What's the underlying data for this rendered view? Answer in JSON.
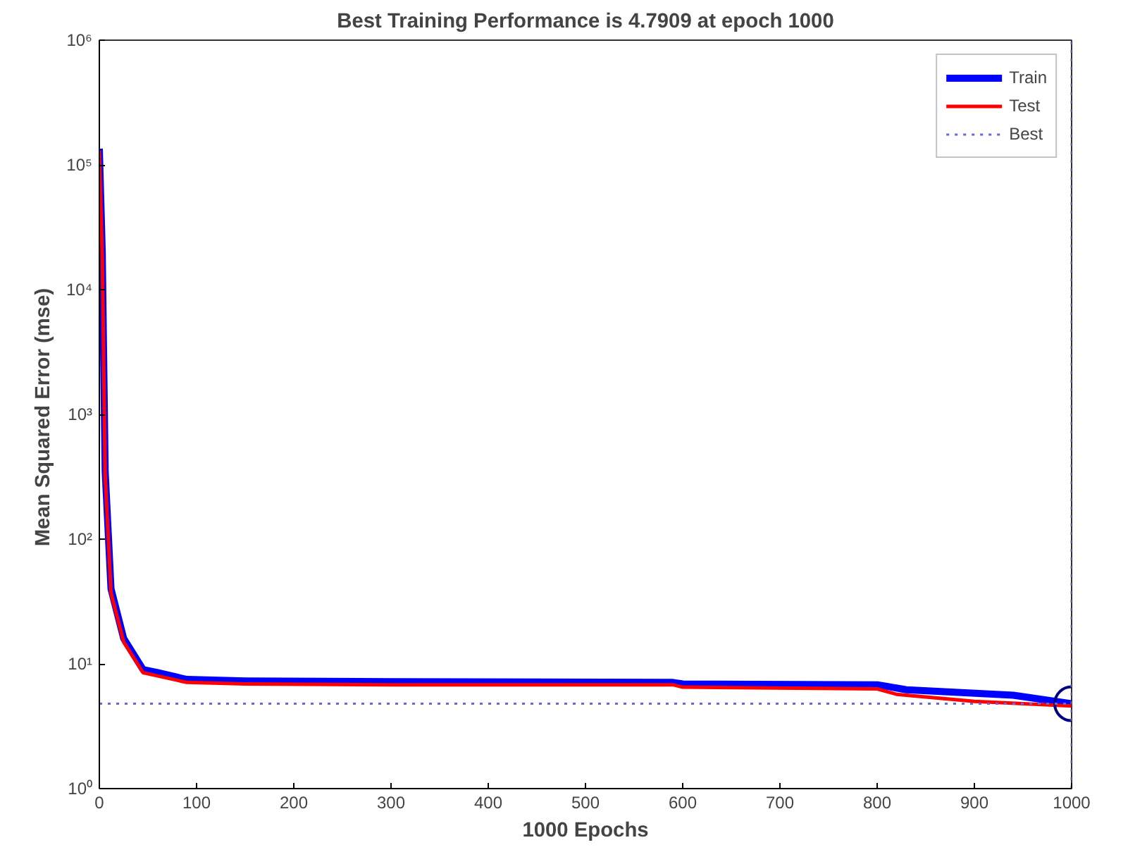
{
  "chart_data": {
    "type": "line",
    "title": "Best Training Performance is 4.7909 at epoch 1000",
    "xlabel": "1000 Epochs",
    "ylabel": "Mean Squared Error  (mse)",
    "log": "y",
    "xlim": [
      0,
      1000
    ],
    "ylim": [
      1,
      1000000
    ],
    "xticks": [
      0,
      100,
      200,
      300,
      400,
      500,
      600,
      700,
      800,
      900,
      1000
    ],
    "yticks": [
      {
        "value": 1,
        "label": "10⁰"
      },
      {
        "value": 10,
        "label": "10¹"
      },
      {
        "value": 100,
        "label": "10²"
      },
      {
        "value": 1000,
        "label": "10³"
      },
      {
        "value": 10000,
        "label": "10⁴"
      },
      {
        "value": 100000,
        "label": "10⁵"
      },
      {
        "value": 1000000,
        "label": "10⁶"
      }
    ],
    "grid": false,
    "legend": "top right",
    "line_style": "solid",
    "series": [
      {
        "name": "Train",
        "color": "#0000ff",
        "x": [
          0,
          3,
          6,
          12,
          25,
          45,
          60,
          90,
          150,
          300,
          590,
          600,
          800,
          810,
          830,
          940,
          1000
        ],
        "values": [
          135000,
          20000,
          350,
          40,
          16,
          9,
          8.5,
          7.5,
          7.3,
          7.2,
          7.1,
          6.9,
          6.8,
          6.6,
          6.2,
          5.6,
          4.7909
        ]
      },
      {
        "name": "Test",
        "color": "#ff0000",
        "x": [
          0,
          3,
          6,
          12,
          25,
          45,
          60,
          90,
          150,
          300,
          590,
          600,
          800,
          820,
          900,
          1000
        ],
        "values": [
          130000,
          19000,
          330,
          37,
          15,
          8.5,
          8,
          7.1,
          6.9,
          6.8,
          6.8,
          6.5,
          6.3,
          5.7,
          5.0,
          4.6
        ]
      },
      {
        "type": "scatter",
        "marker": "circle",
        "color": "#000080",
        "x": [
          1000
        ],
        "values": [
          4.7909
        ]
      }
    ],
    "ref_lines": [
      {
        "axis": "y",
        "value": 4.7909,
        "label": "Best",
        "color": "#6666dd",
        "line_style": "dotted"
      },
      {
        "axis": "x",
        "value": 1000,
        "color": "#6666dd",
        "line_style": "dotted"
      }
    ]
  }
}
